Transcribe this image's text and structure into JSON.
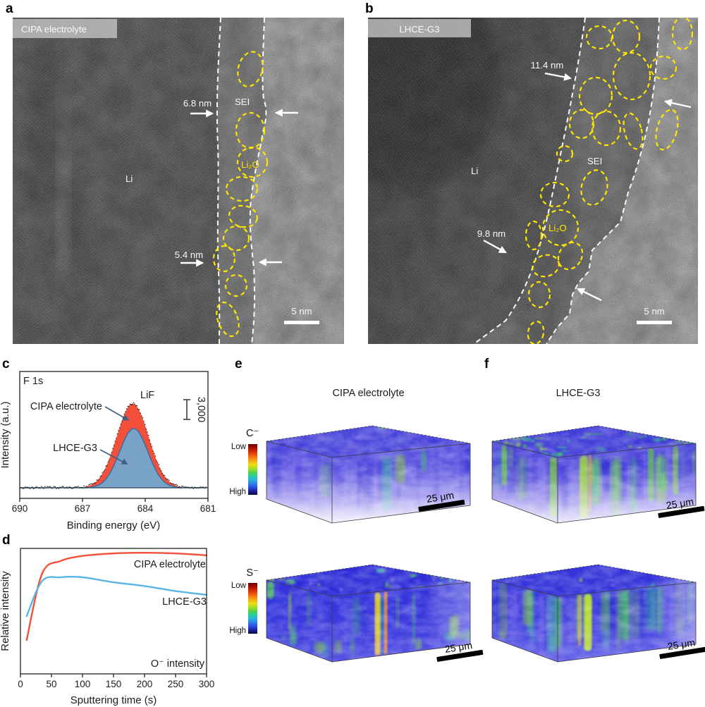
{
  "figure": {
    "panels": {
      "a": {
        "letter": "a",
        "electrolyte_label": "CIPA electrolyte",
        "metal_label": "Li",
        "sei_label": "SEI",
        "particle_label": "Li₂O",
        "thickness_top": "6.8 nm",
        "thickness_bottom": "5.4 nm",
        "scale_bar": "5 nm"
      },
      "b": {
        "letter": "b",
        "electrolyte_label": "LHCE-G3",
        "metal_label": "Li",
        "sei_label": "SEI",
        "particle_label": "Li₂O",
        "thickness_top": "11.4 nm",
        "thickness_bottom": "9.8 nm",
        "scale_bar": "5 nm"
      },
      "c": {
        "letter": "c",
        "spectrum_label": "F 1s",
        "peak_label": "LiF",
        "series1_label": "CIPA electrolyte",
        "series2_label": "LHCE-G3",
        "scale_bar_label": "3,000",
        "xlabel": "Binding energy (eV)",
        "ylabel": "Intensity (a.u.)"
      },
      "d": {
        "letter": "d",
        "series1_label": "CIPA electrolyte",
        "series2_label": "LHCE-G3",
        "annotation": "O⁻ intensity",
        "xlabel": "Sputtering time (s)",
        "ylabel": "Relative intensity"
      },
      "e": {
        "letter": "e",
        "title": "CIPA electrolyte",
        "scale_bar_c": "25 μm",
        "scale_bar_s": "25 μm"
      },
      "f": {
        "letter": "f",
        "title": "LHCE-G3",
        "scale_bar_c": "25 μm",
        "scale_bar_s": "25 μm"
      },
      "colorbar_rows": [
        {
          "ion": "C⁻",
          "low": "Low",
          "high": "High"
        },
        {
          "ion": "S⁻",
          "low": "Low",
          "high": "High"
        }
      ]
    }
  },
  "chart_data": [
    {
      "id": "xps_f1s",
      "type": "area",
      "title": "F 1s",
      "xlabel": "Binding energy (eV)",
      "ylabel": "Intensity (a.u.)",
      "x_range": [
        690,
        681
      ],
      "xticks": [
        690,
        687,
        684,
        681
      ],
      "peak_annotation": "LiF",
      "scalebar_value_au": 3000,
      "scalebar_label": "3,000",
      "series": [
        {
          "name": "CIPA electrolyte",
          "color": "#f2503a",
          "peak_center_eV": 684.6,
          "peak_fwhm_eV": 1.8,
          "amplitude_au": 12800,
          "x": [
            690,
            689.5,
            689,
            688.5,
            688,
            687.5,
            687,
            686.5,
            686,
            685.5,
            685,
            684.6,
            684.5,
            684,
            683.5,
            683,
            682.5,
            682,
            681.5,
            681
          ],
          "y": [
            0,
            0,
            0,
            0,
            1,
            13,
            111,
            657,
            2565,
            6589,
            11222,
            12800,
            12695,
            9523,
            4737,
            1564,
            343,
            50,
            5,
            0
          ]
        },
        {
          "name": "LHCE-G3",
          "color": "#72a7cf",
          "peak_center_eV": 684.55,
          "peak_fwhm_eV": 1.6,
          "amplitude_au": 9000,
          "x": [
            690,
            689.5,
            689,
            688.5,
            688,
            687.5,
            687,
            686.5,
            686,
            685.5,
            685,
            684.55,
            684.5,
            684,
            683.5,
            683,
            682.5,
            682,
            681.5,
            681
          ],
          "y": [
            0,
            0,
            0,
            0,
            0,
            1,
            14,
            148,
            929,
            3378,
            7237,
            9000,
            8975,
            6482,
            2739,
            669,
            96,
            8,
            0,
            0
          ]
        }
      ]
    },
    {
      "id": "o_depth_profile",
      "type": "line",
      "xlabel": "Sputtering time (s)",
      "ylabel": "Relative intensity",
      "annotation": "O⁻ intensity",
      "xlim": [
        0,
        310
      ],
      "ylim": [
        0,
        1
      ],
      "xticks": [
        0,
        50,
        100,
        150,
        200,
        250,
        300
      ],
      "series": [
        {
          "name": "CIPA electrolyte",
          "color": "#f2503a",
          "x": [
            10,
            35,
            65,
            100,
            150,
            200,
            250,
            300
          ],
          "y": [
            0.27,
            0.8,
            0.9,
            0.94,
            0.96,
            0.965,
            0.96,
            0.945
          ]
        },
        {
          "name": "LHCE-G3",
          "color": "#5ab4e5",
          "x": [
            10,
            35,
            65,
            100,
            150,
            200,
            250,
            300
          ],
          "y": [
            0.46,
            0.74,
            0.77,
            0.77,
            0.73,
            0.7,
            0.66,
            0.63
          ]
        }
      ]
    }
  ],
  "colors": {
    "cipa_red": "#f2503a",
    "lhce_fill_blue": "#72a7cf",
    "lhce_line_blue": "#5ab4e5",
    "annotation_arrow": "#41607e",
    "sei_outline_yellow": "#ffe600",
    "tof_base_blue": "#3c3ce0"
  }
}
